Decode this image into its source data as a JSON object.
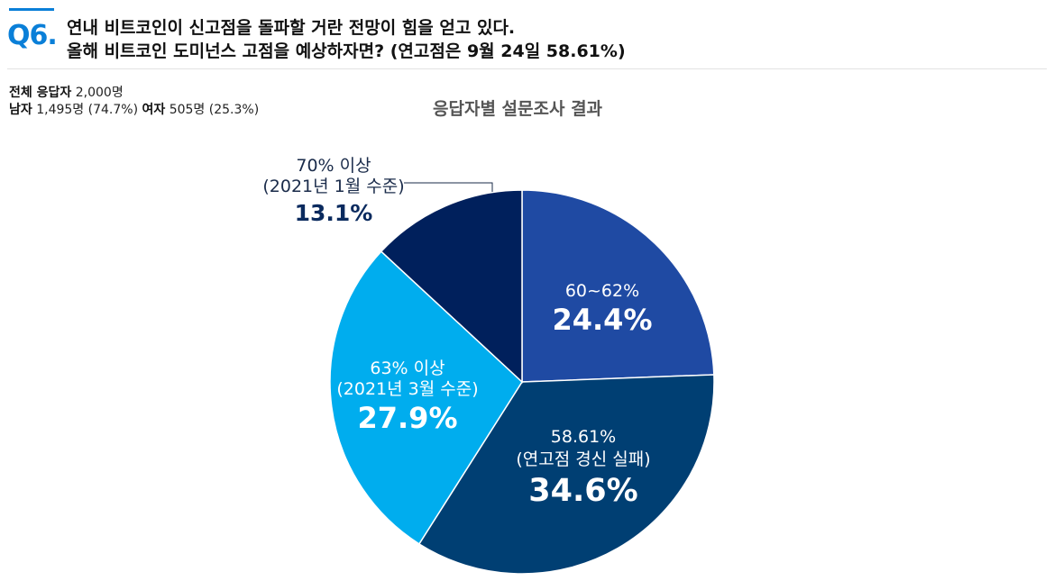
{
  "header": {
    "qnum": "Q6.",
    "question_line1": "연내 비트코인이 신고점을 돌파할 거란 전망이 힘을 얻고 있다.",
    "question_line2": "올해 비트코인 도미넌스 고점을 예상하자면? (연고점은 9월 24일 58.61%)"
  },
  "stats": {
    "total_label": "전체 응답자",
    "total_value": "2,000명",
    "male_label": "남자",
    "male_value": "1,495명 (74.7%)",
    "female_label": "여자",
    "female_value": "505명 (25.3%)"
  },
  "colors": {
    "accent": "#0a7fd8",
    "slice_60_62": "#1f4aa3",
    "slice_5861": "#003f73",
    "slice_63": "#00adee",
    "slice_70": "#00205c",
    "label_dark": "#0a2a5e"
  },
  "chart_data": {
    "type": "pie",
    "title": "응답자별 설문조사 결과",
    "slices": [
      {
        "key": "s1",
        "label_lines": [
          "60~62%"
        ],
        "value": 24.4,
        "value_label": "24.4%",
        "color": "#1f4aa3"
      },
      {
        "key": "s2",
        "label_lines": [
          "58.61%",
          "(연고점 경신 실패)"
        ],
        "value": 34.6,
        "value_label": "34.6%",
        "color": "#003f73"
      },
      {
        "key": "s3",
        "label_lines": [
          "63% 이상",
          "(2021년 3월 수준)"
        ],
        "value": 27.9,
        "value_label": "27.9%",
        "color": "#00adee"
      },
      {
        "key": "s4",
        "label_lines": [
          "70% 이상",
          "(2021년 1월 수준)"
        ],
        "value": 13.1,
        "value_label": "13.1%",
        "color": "#00205c"
      }
    ]
  }
}
